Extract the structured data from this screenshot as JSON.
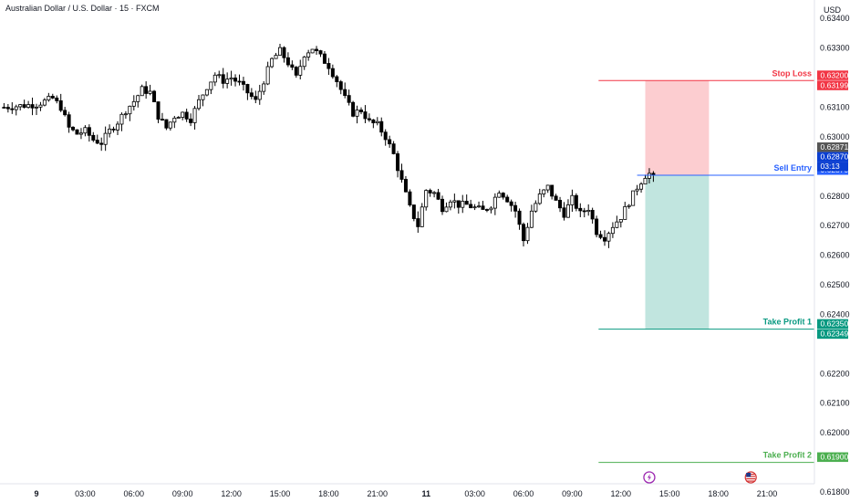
{
  "chart_data": {
    "type": "candlestick",
    "title": "Australian Dollar / U.S. Dollar · 15 · FXCM",
    "currency": "USD",
    "ylim": [
      0.618,
      0.6345
    ],
    "y_ticks": [
      "0.63400",
      "0.63300",
      "0.63100",
      "0.63000",
      "0.62800",
      "0.62700",
      "0.62600",
      "0.62500",
      "0.62400",
      "0.62200",
      "0.62100",
      "0.62000",
      "0.61800"
    ],
    "x_ticks": [
      {
        "label": "9",
        "bold": true,
        "pos": 0
      },
      {
        "label": "03:00",
        "pos": 12
      },
      {
        "label": "06:00",
        "pos": 24
      },
      {
        "label": "09:00",
        "pos": 36
      },
      {
        "label": "12:00",
        "pos": 48
      },
      {
        "label": "15:00",
        "pos": 60
      },
      {
        "label": "18:00",
        "pos": 72
      },
      {
        "label": "21:00",
        "pos": 84
      },
      {
        "label": "11",
        "bold": true,
        "pos": 96
      },
      {
        "label": "03:00",
        "pos": 108
      },
      {
        "label": "06:00",
        "pos": 120
      },
      {
        "label": "09:00",
        "pos": 132
      },
      {
        "label": "12:00",
        "pos": 144
      },
      {
        "label": "15:00",
        "pos": 156
      },
      {
        "label": "18:00",
        "pos": 168
      },
      {
        "label": "21:00",
        "pos": 180
      }
    ],
    "close_path": [
      [
        -8,
        0.631
      ],
      [
        0,
        0.6311
      ],
      [
        4,
        0.6313
      ],
      [
        6,
        0.631
      ],
      [
        8,
        0.6303
      ],
      [
        10,
        0.6301
      ],
      [
        12,
        0.6302
      ],
      [
        14,
        0.6299
      ],
      [
        16,
        0.6298
      ],
      [
        18,
        0.6302
      ],
      [
        20,
        0.6305
      ],
      [
        22,
        0.6309
      ],
      [
        24,
        0.6312
      ],
      [
        26,
        0.6316
      ],
      [
        28,
        0.6315
      ],
      [
        30,
        0.6307
      ],
      [
        32,
        0.6303
      ],
      [
        34,
        0.6307
      ],
      [
        36,
        0.6308
      ],
      [
        38,
        0.6306
      ],
      [
        40,
        0.6312
      ],
      [
        42,
        0.6317
      ],
      [
        44,
        0.6321
      ],
      [
        46,
        0.6319
      ],
      [
        48,
        0.632
      ],
      [
        50,
        0.6318
      ],
      [
        52,
        0.6315
      ],
      [
        54,
        0.6312
      ],
      [
        56,
        0.6319
      ],
      [
        58,
        0.6326
      ],
      [
        60,
        0.6329
      ],
      [
        62,
        0.6325
      ],
      [
        64,
        0.632
      ],
      [
        66,
        0.6328
      ],
      [
        68,
        0.633
      ],
      [
        70,
        0.6327
      ],
      [
        72,
        0.6324
      ],
      [
        74,
        0.6319
      ],
      [
        76,
        0.6313
      ],
      [
        78,
        0.6308
      ],
      [
        80,
        0.6309
      ],
      [
        82,
        0.6305
      ],
      [
        84,
        0.6304
      ],
      [
        86,
        0.63
      ],
      [
        88,
        0.6294
      ],
      [
        90,
        0.6285
      ],
      [
        92,
        0.6276
      ],
      [
        94,
        0.627
      ],
      [
        96,
        0.6282
      ],
      [
        98,
        0.6281
      ],
      [
        100,
        0.6276
      ],
      [
        102,
        0.6279
      ],
      [
        104,
        0.6277
      ],
      [
        106,
        0.6277
      ],
      [
        108,
        0.6276
      ],
      [
        110,
        0.6275
      ],
      [
        112,
        0.6277
      ],
      [
        114,
        0.6282
      ],
      [
        116,
        0.6279
      ],
      [
        118,
        0.6275
      ],
      [
        120,
        0.6265
      ],
      [
        122,
        0.6275
      ],
      [
        124,
        0.628
      ],
      [
        126,
        0.6283
      ],
      [
        128,
        0.6278
      ],
      [
        130,
        0.6274
      ],
      [
        132,
        0.6279
      ],
      [
        134,
        0.6274
      ],
      [
        136,
        0.6276
      ],
      [
        138,
        0.6268
      ],
      [
        140,
        0.6266
      ],
      [
        142,
        0.627
      ],
      [
        144,
        0.6273
      ],
      [
        146,
        0.6278
      ],
      [
        148,
        0.6283
      ],
      [
        150,
        0.6287
      ],
      [
        152,
        0.6288
      ]
    ],
    "levels": [
      {
        "name": "Stop Loss",
        "value": 0.6319,
        "color": "#f23645",
        "badges": [
          "0.63200",
          "0.63199"
        ]
      },
      {
        "name": "Sell Entry",
        "value": 0.6287,
        "color": "#2962ff",
        "badges": [
          "0.62870"
        ]
      },
      {
        "name": "Take Profit 1",
        "value": 0.6235,
        "color": "#089981",
        "badges": [
          "0.62350",
          "0.62349"
        ]
      },
      {
        "name": "Take Profit 2",
        "value": 0.619,
        "color": "#4caf50",
        "badges": [
          "0.61900"
        ]
      }
    ],
    "price_badges": [
      {
        "text": "0.62871",
        "color": "#555555"
      },
      {
        "text": "0.62870",
        "color": "#0b3fd1"
      },
      {
        "text": "03:13",
        "color": "#0b3fd1"
      }
    ],
    "risk_zone_color": "#f23645",
    "reward_zone_color": "#089981",
    "event_icons": [
      {
        "name": "lightning-event",
        "pos": 151
      },
      {
        "name": "us-flag-event",
        "pos": 176
      }
    ]
  }
}
